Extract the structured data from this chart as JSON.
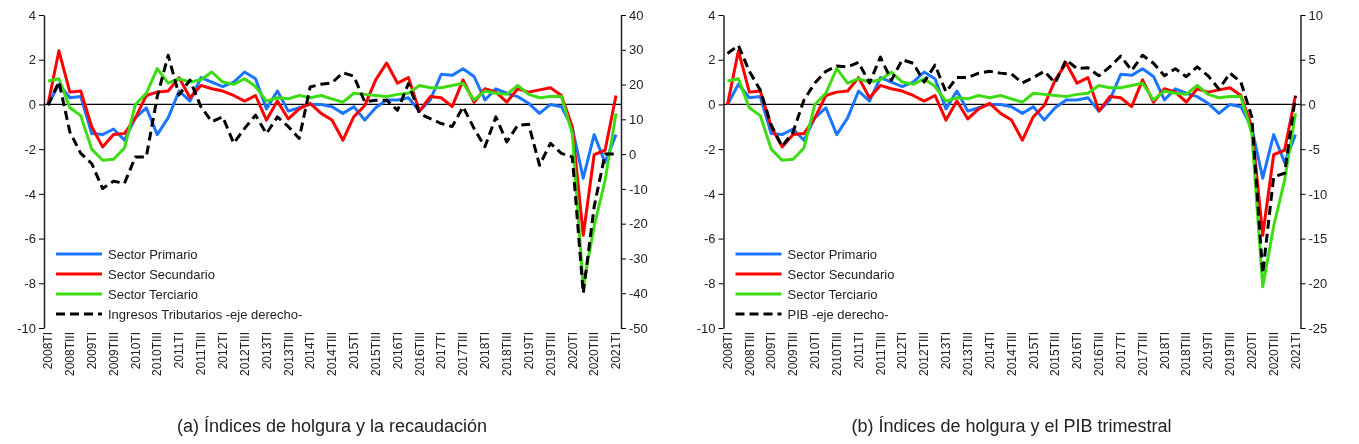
{
  "chart_data": [
    {
      "type": "line",
      "title": "(a) Índices de holgura y la recaudación",
      "categories": [
        "2008TI",
        null,
        "2008TIII",
        null,
        "2009TI",
        null,
        "2009TIII",
        null,
        "2010TI",
        null,
        "2010TIII",
        null,
        "2011TI",
        null,
        "2011TIII",
        null,
        "2012TI",
        null,
        "2012TIII",
        null,
        "2013TI",
        null,
        "2013TIII",
        null,
        "2014TI",
        null,
        "2014TIII",
        null,
        "2015TI",
        null,
        "2015TIII",
        null,
        "2016TI",
        null,
        "2016TIII",
        null,
        "2017TI",
        null,
        "2017TIII",
        null,
        "2018TI",
        null,
        "2018TIII",
        null,
        "2019TI",
        null,
        "2019TIII",
        null,
        "2020TI",
        null,
        "2020TIII",
        null,
        "2021TI"
      ],
      "ylim": [
        -10,
        4
      ],
      "yticks": [
        -10,
        -8,
        -6,
        -4,
        -2,
        0,
        2,
        4
      ],
      "y2lim": [
        -50,
        40
      ],
      "y2ticks": [
        -50,
        -40,
        -30,
        -20,
        -10,
        0,
        10,
        20,
        30,
        40
      ],
      "grid": false,
      "legend": "bottom left",
      "ref_lines": [
        {
          "axis": "y",
          "value": 0,
          "color": "#000000"
        }
      ],
      "series": [
        {
          "name": "Sector Primario",
          "color": "#1a75ff",
          "line_style": "solid",
          "values": [
            0,
            0.9,
            0.3,
            0.35,
            -1.3,
            -1.35,
            -1.1,
            -1.6,
            -0.6,
            -0.15,
            -1.35,
            -0.6,
            0.6,
            0.15,
            1.2,
            1.0,
            0.8,
            1.0,
            1.45,
            1.15,
            -0.2,
            0.6,
            -0.3,
            -0.15,
            0,
            0,
            -0.1,
            -0.4,
            -0.1,
            -0.7,
            -0.15,
            0.2,
            0.2,
            0.3,
            -0.3,
            0.2,
            1.35,
            1.3,
            1.6,
            1.25,
            0.2,
            0.7,
            0.5,
            0.35,
            0.05,
            -0.4,
            0,
            -0.1,
            -1.05,
            -3.3,
            -1.35,
            -2.6,
            -1.35
          ]
        },
        {
          "name": "Sector Secundario",
          "color": "#ff0000",
          "line_style": "solid",
          "values": [
            0,
            2.4,
            0.55,
            0.6,
            -1.0,
            -1.9,
            -1.35,
            -1.3,
            -0.6,
            0.4,
            0.55,
            0.6,
            1.2,
            0.3,
            0.85,
            0.7,
            0.6,
            0.4,
            0.15,
            0.4,
            -0.7,
            0.15,
            -0.65,
            -0.2,
            0.05,
            -0.4,
            -0.7,
            -1.6,
            -0.55,
            -0.05,
            1.1,
            1.85,
            0.95,
            1.2,
            -0.3,
            0.35,
            0.3,
            -0.1,
            1.1,
            0.1,
            0.7,
            0.55,
            0.1,
            0.7,
            0.55,
            0.65,
            0.75,
            0.4,
            -1.0,
            -5.85,
            -2.25,
            -2.05,
            0.4
          ]
        },
        {
          "name": "Sector Terciario",
          "color": "#3ddc12",
          "line_style": "solid",
          "values": [
            1.05,
            1.15,
            -0.15,
            -0.5,
            -2.0,
            -2.5,
            -2.45,
            -1.95,
            0,
            0.5,
            1.6,
            0.95,
            1.15,
            1.0,
            1.1,
            1.45,
            1.0,
            0.9,
            1.15,
            0.8,
            0.15,
            0.3,
            0.25,
            0.4,
            0.3,
            0.4,
            0.25,
            0.1,
            0.5,
            0.45,
            0.4,
            0.35,
            0.45,
            0.5,
            0.85,
            0.75,
            0.75,
            0.85,
            0.95,
            0.2,
            0.6,
            0.5,
            0.45,
            0.85,
            0.45,
            0.3,
            0.35,
            0.35,
            -1.3,
            -8.15,
            -5.45,
            -3.4,
            -0.4
          ]
        },
        {
          "name": "Ingresos Tributarios -eje derecho-",
          "color": "#000000",
          "line_style": "dashed",
          "axis": "y2",
          "values": [
            14,
            20.8,
            6.4,
            0.2,
            -2.7,
            -9.9,
            -7.8,
            -8.4,
            -0.8,
            -0.8,
            16.5,
            28.4,
            17,
            21.3,
            13.6,
            9.3,
            10.7,
            3.1,
            7.4,
            11.2,
            5.9,
            10.7,
            7.9,
            4.5,
            19.3,
            20.1,
            20.5,
            23.4,
            22.4,
            15,
            15.5,
            15.5,
            12.6,
            20.3,
            11.7,
            10.2,
            8.8,
            7.9,
            13.6,
            7.4,
            2.1,
            10.7,
            3.5,
            8.3,
            8.6,
            -3.2,
            3.1,
            0.2,
            -0.8,
            -40,
            -15.1,
            0,
            0
          ]
        }
      ]
    },
    {
      "type": "line",
      "title": "(b) Índices de holgura y el PIB trimestral",
      "categories": [
        "2008TI",
        null,
        "2008TIII",
        null,
        "2009TI",
        null,
        "2009TIII",
        null,
        "2010TI",
        null,
        "2010TIII",
        null,
        "2011TI",
        null,
        "2011TIII",
        null,
        "2012TI",
        null,
        "2012TIII",
        null,
        "2013TI",
        null,
        "2013TIII",
        null,
        "2014TI",
        null,
        "2014TIII",
        null,
        "2015TI",
        null,
        "2015TIII",
        null,
        "2016TI",
        null,
        "2016TIII",
        null,
        "2017TI",
        null,
        "2017TIII",
        null,
        "2018TI",
        null,
        "2018TIII",
        null,
        "2019TI",
        null,
        "2019TIII",
        null,
        "2020TI",
        null,
        "2020TIII",
        null,
        "2021TI"
      ],
      "ylim": [
        -10,
        4
      ],
      "yticks": [
        -10,
        -8,
        -6,
        -4,
        -2,
        0,
        2,
        4
      ],
      "y2lim": [
        -25,
        10
      ],
      "y2ticks": [
        -25,
        -20,
        -15,
        -10,
        -5,
        0,
        5,
        10
      ],
      "grid": false,
      "legend": "bottom left",
      "ref_lines": [
        {
          "axis": "y",
          "value": 0,
          "color": "#000000"
        }
      ],
      "series": [
        {
          "name": "Sector Primario",
          "color": "#1a75ff",
          "line_style": "solid",
          "values": [
            0,
            0.9,
            0.3,
            0.35,
            -1.3,
            -1.35,
            -1.1,
            -1.6,
            -0.6,
            -0.15,
            -1.35,
            -0.6,
            0.6,
            0.15,
            1.2,
            1.0,
            0.8,
            1.0,
            1.45,
            1.15,
            -0.2,
            0.6,
            -0.3,
            -0.15,
            0,
            0,
            -0.1,
            -0.4,
            -0.1,
            -0.7,
            -0.15,
            0.2,
            0.2,
            0.3,
            -0.3,
            0.2,
            1.35,
            1.3,
            1.6,
            1.25,
            0.2,
            0.7,
            0.5,
            0.35,
            0.05,
            -0.4,
            0,
            -0.1,
            -1.05,
            -3.3,
            -1.35,
            -2.6,
            -1.35
          ]
        },
        {
          "name": "Sector Secundario",
          "color": "#ff0000",
          "line_style": "solid",
          "values": [
            0,
            2.4,
            0.55,
            0.6,
            -1.0,
            -1.9,
            -1.35,
            -1.3,
            -0.6,
            0.4,
            0.55,
            0.6,
            1.2,
            0.3,
            0.85,
            0.7,
            0.6,
            0.4,
            0.15,
            0.4,
            -0.7,
            0.15,
            -0.65,
            -0.2,
            0.05,
            -0.4,
            -0.7,
            -1.6,
            -0.55,
            -0.05,
            1.1,
            1.85,
            0.95,
            1.2,
            -0.3,
            0.35,
            0.3,
            -0.1,
            1.1,
            0.1,
            0.7,
            0.55,
            0.1,
            0.7,
            0.55,
            0.65,
            0.75,
            0.4,
            -1.0,
            -5.85,
            -2.25,
            -2.05,
            0.4
          ]
        },
        {
          "name": "Sector Terciario",
          "color": "#3ddc12",
          "line_style": "solid",
          "values": [
            1.05,
            1.15,
            -0.15,
            -0.5,
            -2.0,
            -2.5,
            -2.45,
            -1.95,
            0,
            0.5,
            1.6,
            0.95,
            1.15,
            1.0,
            1.1,
            1.45,
            1.0,
            0.9,
            1.15,
            0.8,
            0.15,
            0.3,
            0.25,
            0.4,
            0.3,
            0.4,
            0.25,
            0.1,
            0.5,
            0.45,
            0.4,
            0.35,
            0.45,
            0.5,
            0.85,
            0.75,
            0.75,
            0.85,
            0.95,
            0.2,
            0.6,
            0.5,
            0.45,
            0.85,
            0.45,
            0.3,
            0.35,
            0.35,
            -1.3,
            -8.15,
            -5.45,
            -3.4,
            -0.4
          ]
        },
        {
          "name": "PIB -eje derecho-",
          "color": "#000000",
          "line_style": "dashed",
          "axis": "y2",
          "values": [
            5.7,
            6.6,
            3.7,
            1.6,
            -2.3,
            -4.7,
            -3.1,
            0.5,
            2.4,
            3.7,
            4.3,
            4.2,
            4.7,
            2.4,
            5.3,
            2.7,
            5.0,
            4.6,
            2.5,
            4.4,
            1.4,
            3.0,
            3.0,
            3.5,
            3.7,
            3.5,
            3.4,
            2.4,
            3.0,
            3.7,
            2.4,
            5.0,
            4.0,
            4.1,
            3.2,
            4.2,
            5.4,
            3.8,
            5.5,
            4.6,
            3.2,
            4.0,
            3.1,
            4.2,
            3.2,
            1.7,
            3.5,
            2.5,
            -1.4,
            -18.9,
            -8.1,
            -7.7,
            0.9
          ]
        }
      ]
    }
  ]
}
